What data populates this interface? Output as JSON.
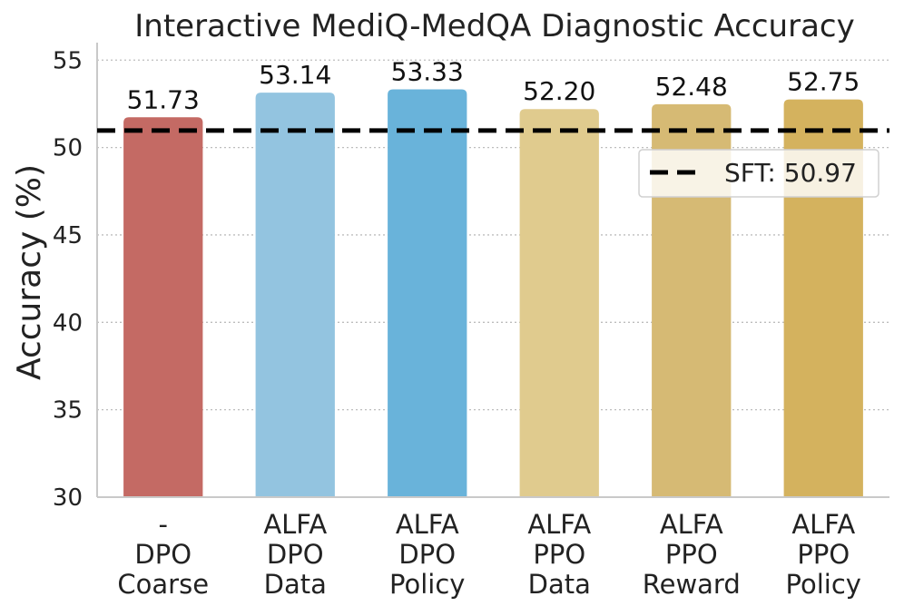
{
  "chart_data": {
    "type": "bar",
    "title": "Interactive MediQ-MedQA Diagnostic Accuracy",
    "xlabel": "",
    "ylabel": "Accuracy (%)",
    "ylim": [
      30,
      56
    ],
    "yticks": [
      30,
      35,
      40,
      45,
      50,
      55
    ],
    "grid": "horizontal dotted",
    "categories": [
      {
        "lines": [
          "-",
          "DPO",
          "Coarse"
        ]
      },
      {
        "lines": [
          "ALFA",
          "DPO",
          "Data"
        ]
      },
      {
        "lines": [
          "ALFA",
          "DPO",
          "Policy"
        ]
      },
      {
        "lines": [
          "ALFA",
          "PPO",
          "Data"
        ]
      },
      {
        "lines": [
          "ALFA",
          "PPO",
          "Reward"
        ]
      },
      {
        "lines": [
          "ALFA",
          "PPO",
          "Policy"
        ]
      }
    ],
    "values": [
      51.73,
      53.14,
      53.33,
      52.2,
      52.48,
      52.75
    ],
    "value_labels": [
      "51.73",
      "53.14",
      "53.33",
      "52.20",
      "52.48",
      "52.75"
    ],
    "colors": [
      "#c46a64",
      "#93c4e0",
      "#69b3da",
      "#e0cb8e",
      "#d6ba74",
      "#d4b25e"
    ],
    "reference_line": {
      "label": "SFT: 50.97",
      "value": 50.97,
      "style": "dashed",
      "color": "#000000"
    },
    "legend_position": "upper-right"
  }
}
